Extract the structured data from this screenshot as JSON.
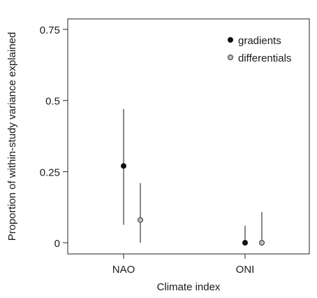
{
  "chart_data": {
    "type": "scatter",
    "xlabel": "Climate index",
    "ylabel": "Proportion of within-study variance explained",
    "categories": [
      "NAO",
      "ONI"
    ],
    "ylim": [
      -0.02,
      0.78
    ],
    "yticks": [
      0,
      0.25,
      0.5,
      0.75
    ],
    "ytick_labels": [
      "0",
      "0.25",
      "0.5",
      "0.75"
    ],
    "grid": false,
    "legend_position": "top-right",
    "series": [
      {
        "name": "gradients",
        "marker_color": "#111111",
        "point_estimate": [
          0.27,
          0.0
        ],
        "lower": [
          0.063,
          0.0
        ],
        "upper": [
          0.47,
          0.06
        ]
      },
      {
        "name": "differentials",
        "marker_color": "#bdbdbd",
        "point_estimate": [
          0.08,
          0.0
        ],
        "lower": [
          0.0,
          0.0
        ],
        "upper": [
          0.21,
          0.108
        ]
      }
    ]
  }
}
